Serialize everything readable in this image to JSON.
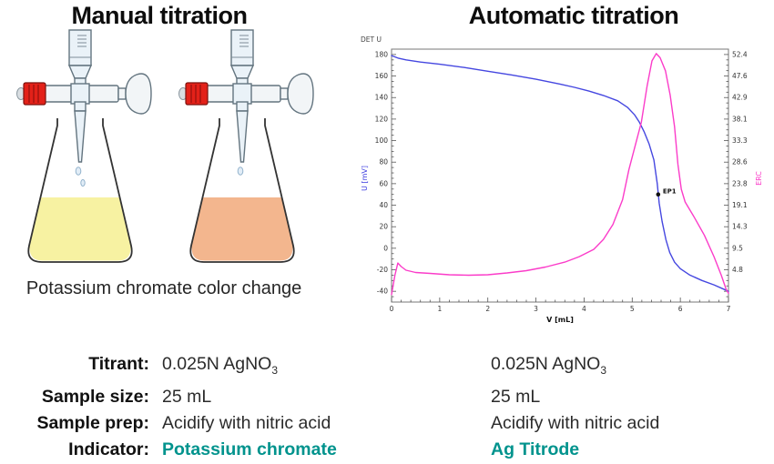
{
  "left_panel": {
    "title": "Manual titration",
    "caption": "Potassium chromate color change",
    "flasks": [
      {
        "name": "flask-before-endpoint",
        "liquid_color": "#f7f2a2"
      },
      {
        "name": "flask-at-endpoint",
        "liquid_color": "#f3b68e"
      }
    ],
    "burette": {
      "valve_color": "#e32119"
    }
  },
  "right_panel": {
    "title": "Automatic titration"
  },
  "chart_data": {
    "type": "line",
    "title": "DET U",
    "xlabel": "V [mL]",
    "ylabel_left": "U [mV]",
    "ylabel_right": "ERC",
    "xlim": [
      0,
      7
    ],
    "ylim_left": [
      -50,
      185
    ],
    "x_ticks": [
      0,
      1,
      2,
      3,
      4,
      5,
      6,
      7
    ],
    "left_ticks": [
      -40,
      -20,
      0,
      20,
      40,
      60,
      80,
      100,
      120,
      140,
      160,
      180
    ],
    "right_tick_labels": [
      "4.8",
      "9.5",
      "14.3",
      "19.1",
      "23.8",
      "28.6",
      "33.3",
      "38.1",
      "42.9",
      "47.6",
      "52.4"
    ],
    "right_ticks_align_left": [
      -20,
      0,
      20,
      40,
      60,
      80,
      100,
      120,
      140,
      160,
      180
    ],
    "grid": false,
    "series": [
      {
        "name": "U [mV]",
        "axis": "left",
        "color": "#4547e0",
        "points": [
          [
            0,
            179
          ],
          [
            0.15,
            176.5
          ],
          [
            0.3,
            175
          ],
          [
            0.6,
            173
          ],
          [
            1,
            171
          ],
          [
            1.5,
            168
          ],
          [
            2,
            164.5
          ],
          [
            2.5,
            161
          ],
          [
            3,
            157
          ],
          [
            3.5,
            152.5
          ],
          [
            3.8,
            149.5
          ],
          [
            4.1,
            146
          ],
          [
            4.4,
            142
          ],
          [
            4.7,
            137
          ],
          [
            4.9,
            131
          ],
          [
            5.05,
            124
          ],
          [
            5.15,
            117
          ],
          [
            5.25,
            108
          ],
          [
            5.35,
            97
          ],
          [
            5.45,
            82
          ],
          [
            5.52,
            60
          ],
          [
            5.56,
            42
          ],
          [
            5.62,
            25
          ],
          [
            5.7,
            8
          ],
          [
            5.78,
            -4
          ],
          [
            5.88,
            -13
          ],
          [
            6,
            -19
          ],
          [
            6.2,
            -25
          ],
          [
            6.45,
            -30
          ],
          [
            6.7,
            -34
          ],
          [
            6.9,
            -38
          ],
          [
            7,
            -40
          ]
        ]
      },
      {
        "name": "ERC",
        "axis": "right",
        "color": "#fb3cc9",
        "points": [
          [
            0,
            -0.7
          ],
          [
            0.07,
            3.6
          ],
          [
            0.13,
            6.3
          ],
          [
            0.2,
            5.5
          ],
          [
            0.3,
            4.7
          ],
          [
            0.5,
            4.2
          ],
          [
            0.8,
            4.0
          ],
          [
            1.2,
            3.7
          ],
          [
            1.6,
            3.6
          ],
          [
            2,
            3.7
          ],
          [
            2.4,
            4.1
          ],
          [
            2.8,
            4.6
          ],
          [
            3.2,
            5.4
          ],
          [
            3.6,
            6.5
          ],
          [
            3.9,
            7.7
          ],
          [
            4.2,
            9.3
          ],
          [
            4.4,
            11.5
          ],
          [
            4.6,
            14.8
          ],
          [
            4.8,
            20.3
          ],
          [
            4.93,
            26.9
          ],
          [
            5.06,
            32.2
          ],
          [
            5.19,
            37.4
          ],
          [
            5.31,
            45.5
          ],
          [
            5.41,
            51
          ],
          [
            5.5,
            52.6
          ],
          [
            5.58,
            51.7
          ],
          [
            5.69,
            48.8
          ],
          [
            5.79,
            43.4
          ],
          [
            5.88,
            36.4
          ],
          [
            5.95,
            28.1
          ],
          [
            6.02,
            22.6
          ],
          [
            6.1,
            19.8
          ],
          [
            6.3,
            16.2
          ],
          [
            6.5,
            12.4
          ],
          [
            6.7,
            7.7
          ],
          [
            6.85,
            3.6
          ],
          [
            6.95,
            0.5
          ],
          [
            7,
            -0.4
          ]
        ]
      }
    ],
    "endpoint": {
      "label": "EP1",
      "v": 5.54,
      "u_mV": 50
    }
  },
  "table": {
    "highlight_color": "#00938d",
    "rows": [
      {
        "label": "Titrant:",
        "manual": "0.025N AgNO",
        "manual_sub": "3",
        "auto": "0.025N AgNO",
        "auto_sub": "3"
      },
      {
        "label": "Sample size:",
        "manual": "25 mL",
        "auto": "25 mL"
      },
      {
        "label": "Sample prep:",
        "manual": "Acidify with nitric acid",
        "auto": "Acidify with nitric acid"
      },
      {
        "label": "Indicator:",
        "manual": "Potassium chromate",
        "auto": "Ag Titrode"
      }
    ]
  }
}
